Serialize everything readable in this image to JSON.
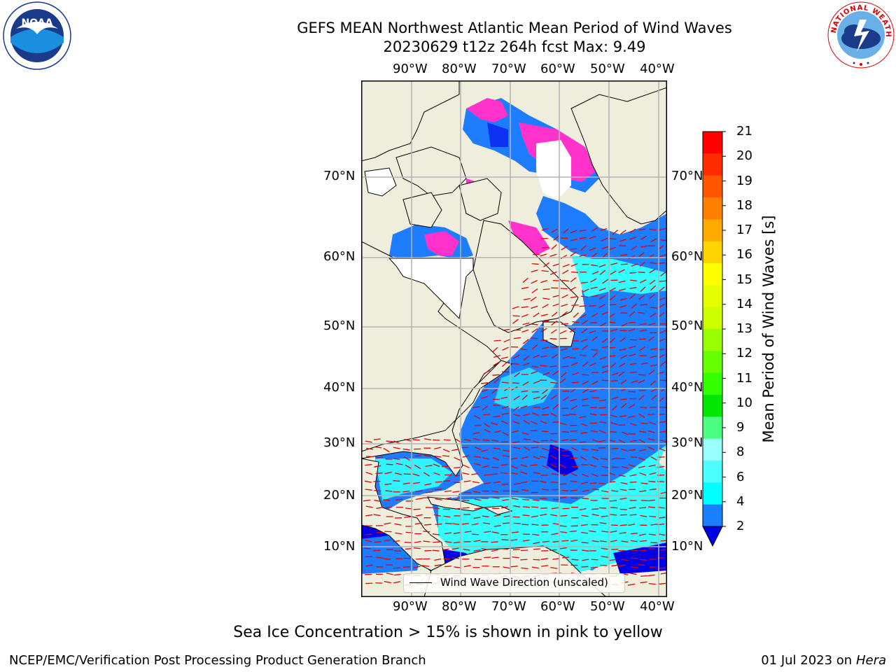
{
  "header": {
    "title_line1": "GEFS MEAN Northwest Atlantic Mean Period of Wind Waves",
    "title_line2": "20230629 t12z 264h fcst   Max: 9.49"
  },
  "logos": {
    "left": "NOAA",
    "left_ring": "NATIONAL OCEANIC AND ATMOSPHERIC ADMINISTRATION · U.S. DEPARTMENT OF COMMERCE",
    "right_ring": "NATIONAL WEATHER SERVICE"
  },
  "map": {
    "lon_ticks": [
      "90°W",
      "80°W",
      "70°W",
      "60°W",
      "50°W",
      "40°W"
    ],
    "lat_ticks": [
      "70°N",
      "60°N",
      "50°N",
      "40°N",
      "30°N",
      "20°N",
      "10°N"
    ],
    "legend_label": "Wind Wave Direction (unscaled)",
    "colors": {
      "land": "#efeedd",
      "ocean_dark": "#0000e6",
      "ocean_mid": "#1e7cff",
      "ocean_light": "#00ffff",
      "ice": "#ff33cc",
      "arrows": "#e00000",
      "grid": "#b3b3b3"
    }
  },
  "colorbar": {
    "label": "Mean Period of Wind Waves [s]",
    "ticks": [
      "21",
      "20",
      "19",
      "18",
      "17",
      "16",
      "15",
      "14",
      "13",
      "12",
      "11",
      "10",
      "9",
      "8",
      "6",
      "4",
      "2"
    ],
    "colors": [
      "#ff0000",
      "#ff2b00",
      "#ff5500",
      "#ff8000",
      "#ffaa00",
      "#ffd400",
      "#ffff00",
      "#e6ff00",
      "#ccff00",
      "#99ff00",
      "#66ff00",
      "#33ff00",
      "#00e600",
      "#4dff80",
      "#99ffff",
      "#4dffff",
      "#00ffff",
      "#1a80ff"
    ],
    "under_color": "#0000e6"
  },
  "footer": {
    "note": "Sea Ice Concentration > 15% is shown in pink to yellow",
    "credit_left": "NCEP/EMC/Verification Post Processing Product Generation Branch",
    "date": "01 Jul 2023 on ",
    "host": "Hera"
  }
}
